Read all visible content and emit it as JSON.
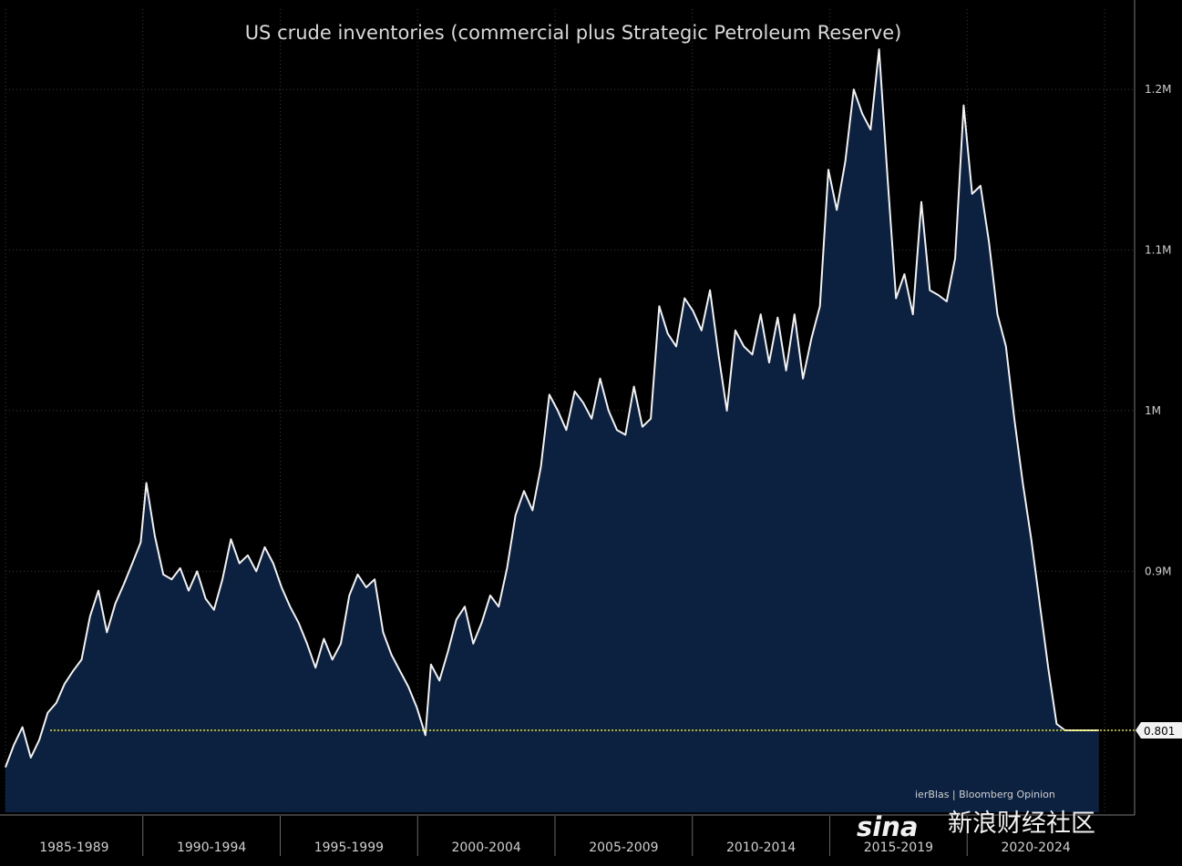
{
  "chart_data": {
    "type": "area",
    "title": "US crude inventories (commercial plus Strategic Petroleum Reserve)",
    "xlabel": "",
    "ylabel": "",
    "x_tick_labels": [
      "1985-1989",
      "1990-1994",
      "1995-1999",
      "2000-2004",
      "2005-2009",
      "2010-2014",
      "2015-2019",
      "2020-2024"
    ],
    "y_ticks": [
      {
        "value": 900000,
        "label": "0.9M"
      },
      {
        "value": 1000000,
        "label": "1M"
      },
      {
        "value": 1100000,
        "label": "1.1M"
      },
      {
        "value": 1200000,
        "label": "1.2M"
      }
    ],
    "xlim": [
      1985.0,
      2024.0
    ],
    "ylim": [
      750000,
      1250000
    ],
    "grid": true,
    "y_axis_side": "right",
    "reference_line": {
      "value": 801000,
      "label": "0.801",
      "color": "#e6e600"
    },
    "credit": "ierBlas | Bloomberg Opinion",
    "colors": {
      "background": "#000000",
      "area_fill": "#0c2040",
      "line": "#f2f2f2",
      "grid": "#3a3a3a"
    },
    "series": [
      {
        "x": [
          1985.0,
          1985.3,
          1985.6,
          1985.9,
          1986.2,
          1986.5,
          1986.8,
          1987.1,
          1987.4,
          1987.7,
          1988.0,
          1988.3,
          1988.6,
          1988.9,
          1989.2,
          1989.5,
          1989.8,
          1990.0,
          1990.3,
          1990.6,
          1990.9,
          1991.2,
          1991.5,
          1991.8,
          1992.1,
          1992.4,
          1992.7,
          1993.0,
          1993.3,
          1993.6,
          1993.9,
          1994.2,
          1994.5,
          1994.8,
          1995.1,
          1995.4,
          1995.7,
          1996.0,
          1996.3,
          1996.6,
          1996.9,
          1997.2,
          1997.5,
          1997.8,
          1998.1,
          1998.4,
          1998.7,
          1999.0,
          1999.3,
          1999.6,
          1999.9,
          2000.1,
          2000.4,
          2000.7,
          2001.0,
          2001.3,
          2001.6,
          2001.9,
          2002.2,
          2002.5,
          2002.8,
          2003.1,
          2003.4,
          2003.7,
          2004.0,
          2004.3,
          2004.6,
          2004.9,
          2005.2,
          2005.5,
          2005.8,
          2006.1,
          2006.4,
          2006.7,
          2007.0,
          2007.3,
          2007.6,
          2007.9,
          2008.2,
          2008.5,
          2008.8,
          2009.1,
          2009.4,
          2009.7,
          2010.0,
          2010.3,
          2010.6,
          2010.9,
          2011.2,
          2011.5,
          2011.8,
          2012.1,
          2012.4,
          2012.7,
          2013.0,
          2013.3,
          2013.6,
          2013.9,
          2014.2,
          2014.5,
          2014.8,
          2015.1,
          2015.4,
          2015.7,
          2016.0,
          2016.3,
          2016.6,
          2016.9,
          2017.2,
          2017.5,
          2017.8,
          2018.1,
          2018.4,
          2018.7,
          2019.0,
          2019.3,
          2019.6,
          2019.9,
          2020.2,
          2020.5,
          2020.8,
          2021.1,
          2021.4,
          2021.7,
          2022.0,
          2022.3,
          2022.6,
          2022.9,
          2023.2,
          2023.5,
          2023.8
        ],
        "values": [
          778000,
          792000,
          803000,
          784000,
          795000,
          812000,
          818000,
          830000,
          838000,
          845000,
          872000,
          888000,
          862000,
          880000,
          892000,
          905000,
          918000,
          955000,
          922000,
          898000,
          895000,
          902000,
          888000,
          900000,
          883000,
          876000,
          895000,
          920000,
          905000,
          910000,
          900000,
          915000,
          905000,
          890000,
          878000,
          868000,
          855000,
          840000,
          858000,
          845000,
          855000,
          885000,
          898000,
          890000,
          895000,
          862000,
          848000,
          838000,
          828000,
          815000,
          798000,
          842000,
          832000,
          850000,
          870000,
          878000,
          855000,
          868000,
          885000,
          878000,
          902000,
          935000,
          950000,
          938000,
          965000,
          1010000,
          1000000,
          988000,
          1012000,
          1005000,
          995000,
          1020000,
          1000000,
          988000,
          985000,
          1015000,
          990000,
          995000,
          1065000,
          1048000,
          1040000,
          1070000,
          1062000,
          1050000,
          1075000,
          1035000,
          1000000,
          1050000,
          1040000,
          1035000,
          1060000,
          1030000,
          1058000,
          1025000,
          1060000,
          1020000,
          1045000,
          1065000,
          1150000,
          1125000,
          1155000,
          1200000,
          1185000,
          1175000,
          1225000,
          1145000,
          1070000,
          1085000,
          1060000,
          1130000,
          1075000,
          1072000,
          1068000,
          1095000,
          1190000,
          1135000,
          1140000,
          1105000,
          1060000,
          1040000,
          995000,
          955000,
          920000,
          880000,
          840000,
          805000,
          801000,
          801000,
          801000,
          801000,
          801000
        ],
        "comment": "x = fractional year"
      }
    ]
  },
  "watermark": {
    "logo_text": "sina",
    "text": "新浪财经社区"
  }
}
